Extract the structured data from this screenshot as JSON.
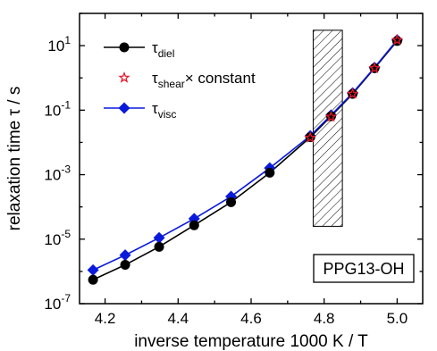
{
  "chart_data": {
    "type": "line",
    "xlabel": "inverse temperature 1000 K / T",
    "ylabel": "relaxation time τ / s",
    "xlim": [
      4.13,
      5.07
    ],
    "ylim": [
      1e-07,
      100
    ],
    "yscale": "log",
    "x_ticks": [
      {
        "value": 4.2,
        "label": "4.2"
      },
      {
        "value": 4.4,
        "label": "4.4"
      },
      {
        "value": 4.6,
        "label": "4.6"
      },
      {
        "value": 4.8,
        "label": "4.8"
      },
      {
        "value": 5.0,
        "label": "5.0"
      }
    ],
    "y_ticks": [
      {
        "value": 1e-07,
        "base": "10",
        "exp": "-7"
      },
      {
        "value": 1e-05,
        "base": "10",
        "exp": "-5"
      },
      {
        "value": 0.001,
        "base": "10",
        "exp": "-3"
      },
      {
        "value": 0.1,
        "base": "10",
        "exp": "-1"
      },
      {
        "value": 10,
        "base": "10",
        "exp": "1"
      }
    ],
    "grid": false,
    "legend_position": "top-left",
    "series": [
      {
        "name_main": "τ",
        "name_sub": "diel",
        "name_suffix": "",
        "marker": "circle",
        "color": "#000000",
        "line": true,
        "x": [
          4.167,
          4.255,
          4.348,
          4.444,
          4.545,
          4.651,
          4.762,
          4.819,
          4.878,
          4.938,
          5.0
        ],
        "y": [
          5.5e-07,
          1.6e-06,
          5.8e-06,
          2.7e-05,
          0.00014,
          0.00115,
          0.0145,
          0.065,
          0.32,
          2.0,
          14
        ]
      },
      {
        "name_main": "τ",
        "name_sub": "shear",
        "name_suffix": "× constant",
        "marker": "star",
        "color": "#e8192c",
        "line": false,
        "x": [
          4.762,
          4.819,
          4.878,
          4.938,
          5.0
        ],
        "y": [
          0.014,
          0.062,
          0.32,
          2.0,
          15
        ]
      },
      {
        "name_main": "τ",
        "name_sub": "visc",
        "name_suffix": "",
        "marker": "diamond",
        "color": "#0a1adb",
        "line": true,
        "x": [
          4.167,
          4.255,
          4.348,
          4.444,
          4.545,
          4.651,
          4.762,
          4.819,
          4.878,
          4.938,
          5.0
        ],
        "y": [
          1.1e-06,
          3.2e-06,
          1.1e-05,
          4.3e-05,
          0.00021,
          0.0016,
          0.016,
          0.07,
          0.34,
          2.1,
          15
        ]
      }
    ],
    "shaded_region": {
      "x": [
        4.77,
        4.85
      ],
      "y": [
        2.5e-05,
        30
      ],
      "pattern": "diagonal-hatch"
    },
    "annotation": {
      "text": "PPG13-OH",
      "position": "bottom-right"
    }
  }
}
